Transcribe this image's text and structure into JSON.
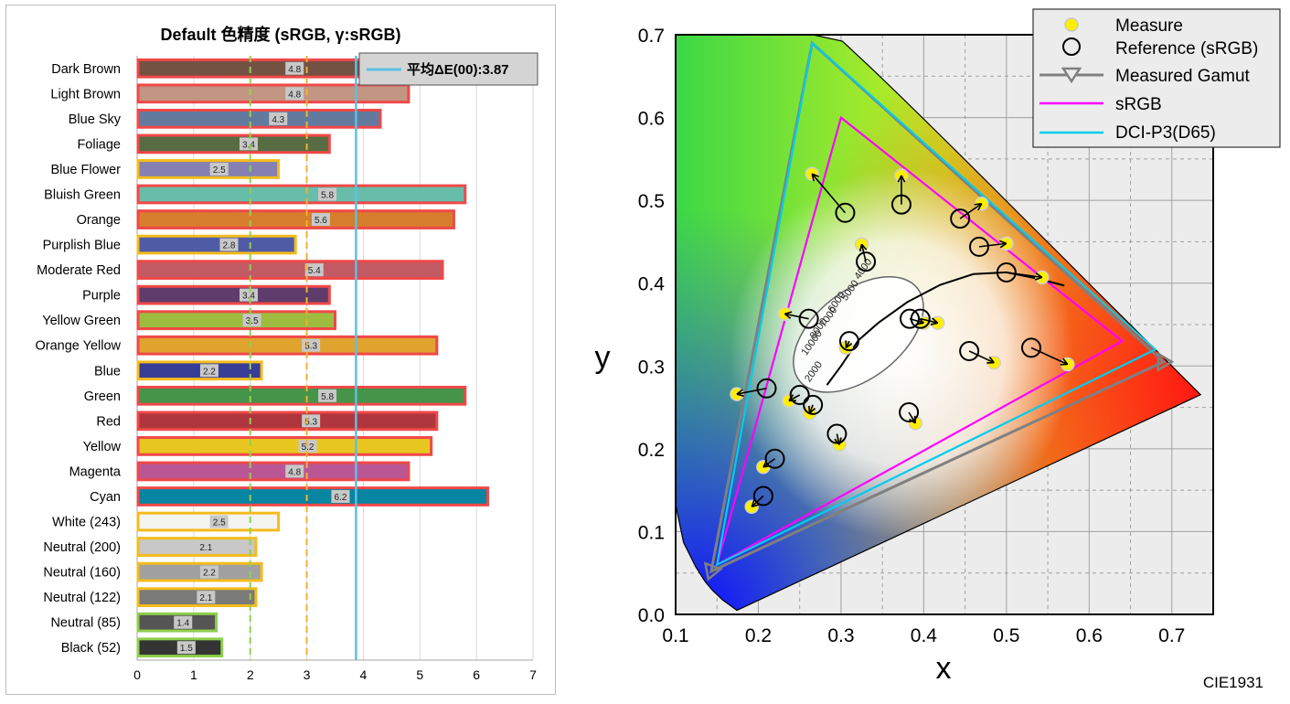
{
  "chart_data": [
    {
      "type": "bar",
      "orientation": "horizontal",
      "title": "Default 色精度 (sRGB, γ:sRGB)",
      "categories": [
        "Dark Brown",
        "Light Brown",
        "Blue Sky",
        "Foliage",
        "Blue Flower",
        "Bluish Green",
        "Orange",
        "Purplish Blue",
        "Moderate Red",
        "Purple",
        "Yellow Green",
        "Orange Yellow",
        "Blue",
        "Green",
        "Red",
        "Yellow",
        "Magenta",
        "Cyan",
        "White (243)",
        "Neutral (200)",
        "Neutral (160)",
        "Neutral (122)",
        "Neutral (85)",
        "Black (52)"
      ],
      "values": [
        4.8,
        4.8,
        4.3,
        3.4,
        2.5,
        5.8,
        5.6,
        2.8,
        5.4,
        3.4,
        3.5,
        5.3,
        2.2,
        5.8,
        5.3,
        5.2,
        4.8,
        6.2,
        2.5,
        2.1,
        2.2,
        2.1,
        1.4,
        1.5
      ],
      "value_labels": [
        "4.8",
        "4.8",
        "4.3",
        "3.4",
        "2.5",
        "5.8",
        "5.6",
        "2.8",
        "5.4",
        "3.4",
        "3.5",
        "5.3",
        "2.2",
        "5.8",
        "5.3",
        "5.2",
        "4.8",
        "6.2",
        "2.5",
        "2.1",
        "2.2",
        "2.1",
        "1.4",
        "1.5"
      ],
      "fill_colors": [
        "#735244",
        "#c29682",
        "#627a9d",
        "#576c43",
        "#8580b1",
        "#67bdaa",
        "#d67e2c",
        "#505ba6",
        "#c15a63",
        "#5e3c6c",
        "#9dbc40",
        "#e0a32e",
        "#383d96",
        "#469449",
        "#af363c",
        "#e7c71f",
        "#bb5695",
        "#0885a1",
        "#f3f3f2",
        "#c8c8c8",
        "#a0a0a0",
        "#7a7a79",
        "#555555",
        "#343434"
      ],
      "outline_colors": {
        "above_3": "#f04848",
        "2_to_3": "#f4bc1c",
        "below_2": "#8fd04c"
      },
      "xlim": [
        0,
        7
      ],
      "xticks": [
        "0",
        "1",
        "2",
        "3",
        "4",
        "5",
        "6",
        "7"
      ],
      "reference_lines": [
        {
          "value": 2,
          "color": "#92d050",
          "style": "dashed"
        },
        {
          "value": 3,
          "color": "#f4b12a",
          "style": "dashed"
        },
        {
          "value": 3.87,
          "color": "#5bc0e6",
          "style": "solid"
        }
      ],
      "legend": {
        "label": "平均ΔE(00):3.87",
        "color": "#5bc0e6",
        "position": "top-right"
      },
      "grid": true
    },
    {
      "type": "scatter",
      "title": "",
      "corner_label": "CIE1931",
      "xlabel": "x",
      "ylabel": "y",
      "xlim": [
        0.1,
        0.7
      ],
      "ylim": [
        0.0,
        0.7
      ],
      "xticks": [
        "0.1",
        "0.2",
        "0.3",
        "0.4",
        "0.5",
        "0.6",
        "0.7"
      ],
      "yticks": [
        "0.0",
        "0.1",
        "0.2",
        "0.3",
        "0.4",
        "0.5",
        "0.6",
        "0.7"
      ],
      "grid": true,
      "legend_position": "top-right",
      "legend": [
        {
          "label": "Measure",
          "marker": "filled-circle",
          "color": "#ffee00"
        },
        {
          "label": "Reference (sRGB)",
          "marker": "open-circle",
          "color": "#000000"
        },
        {
          "label": "Measured Gamut",
          "marker": "triangle",
          "color": "#808080"
        },
        {
          "label": "sRGB",
          "marker": "line",
          "color": "#ff00ff"
        },
        {
          "label": "DCI-P3(D65)",
          "marker": "line",
          "color": "#00ccee"
        }
      ],
      "gamuts": [
        {
          "name": "Measured Gamut",
          "color": "#808080",
          "points": [
            [
              0.69,
              0.305
            ],
            [
              0.265,
              0.69
            ],
            [
              0.143,
              0.052
            ]
          ]
        },
        {
          "name": "sRGB",
          "color": "#ff00ff",
          "points": [
            [
              0.64,
              0.33
            ],
            [
              0.3,
              0.6
            ],
            [
              0.15,
              0.06
            ]
          ]
        },
        {
          "name": "DCI-P3(D65)",
          "color": "#00ccee",
          "points": [
            [
              0.68,
              0.32
            ],
            [
              0.265,
              0.69
            ],
            [
              0.15,
              0.06
            ]
          ]
        }
      ],
      "series": [
        {
          "name": "Reference (sRGB)",
          "points": [
            [
              0.305,
              0.485
            ],
            [
              0.373,
              0.495
            ],
            [
              0.33,
              0.426
            ],
            [
              0.444,
              0.478
            ],
            [
              0.467,
              0.444
            ],
            [
              0.5,
              0.413
            ],
            [
              0.261,
              0.357
            ],
            [
              0.396,
              0.357
            ],
            [
              0.383,
              0.357
            ],
            [
              0.31,
              0.33
            ],
            [
              0.455,
              0.318
            ],
            [
              0.53,
              0.322
            ],
            [
              0.21,
              0.273
            ],
            [
              0.25,
              0.265
            ],
            [
              0.266,
              0.253
            ],
            [
              0.295,
              0.218
            ],
            [
              0.382,
              0.244
            ],
            [
              0.22,
              0.188
            ],
            [
              0.206,
              0.143
            ]
          ]
        },
        {
          "name": "Measure",
          "points": [
            [
              0.265,
              0.532
            ],
            [
              0.373,
              0.53
            ],
            [
              0.325,
              0.447
            ],
            [
              0.47,
              0.496
            ],
            [
              0.5,
              0.448
            ],
            [
              0.543,
              0.407
            ],
            [
              0.232,
              0.363
            ],
            [
              0.417,
              0.352
            ],
            [
              0.4,
              0.352
            ],
            [
              0.306,
              0.322
            ],
            [
              0.485,
              0.304
            ],
            [
              0.574,
              0.302
            ],
            [
              0.174,
              0.266
            ],
            [
              0.237,
              0.258
            ],
            [
              0.262,
              0.243
            ],
            [
              0.298,
              0.205
            ],
            [
              0.39,
              0.231
            ],
            [
              0.206,
              0.178
            ],
            [
              0.192,
              0.13
            ]
          ]
        }
      ],
      "planckian_locus_labels": [
        "2000",
        "4000",
        "5000",
        "6000",
        "7000",
        "8000",
        "10000"
      ]
    }
  ]
}
